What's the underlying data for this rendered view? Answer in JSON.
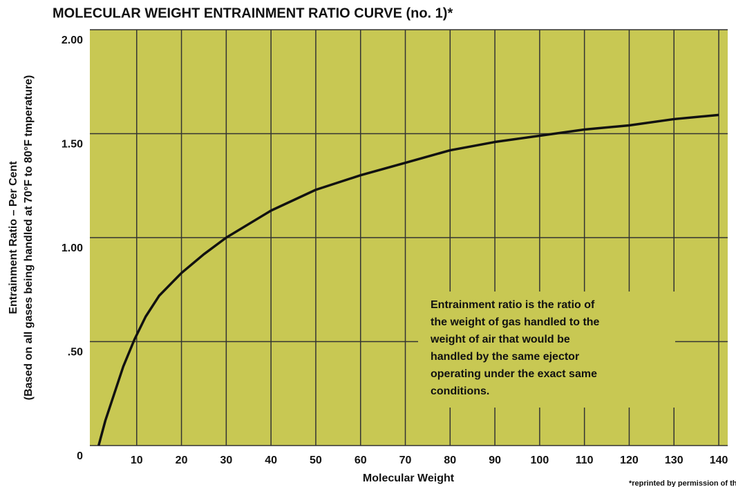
{
  "chart_data": {
    "type": "line",
    "title": "MOLECULAR WEIGHT ENTRAINMENT RATIO CURVE (no. 1)*",
    "xlabel": "Molecular Weight",
    "ylabel": [
      "Entrainment Ratio – Per Cent",
      "(Based on all gases being handled at 70°F to 80°F tmperature)"
    ],
    "x": [
      1.5,
      3,
      5,
      7,
      9.5,
      12,
      15,
      20,
      25,
      30,
      40,
      50,
      60,
      70,
      80,
      90,
      100,
      110,
      120,
      130,
      140
    ],
    "series": [
      {
        "name": "Entrainment ratio",
        "color": "#111111",
        "values": [
          0,
          0.12,
          0.25,
          0.38,
          0.51,
          0.62,
          0.72,
          0.83,
          0.92,
          1.0,
          1.13,
          1.23,
          1.3,
          1.36,
          1.42,
          1.46,
          1.49,
          1.52,
          1.54,
          1.57,
          1.59
        ]
      }
    ],
    "xlim": [
      0,
      142
    ],
    "xticks": [
      10,
      20,
      30,
      40,
      50,
      60,
      70,
      80,
      90,
      100,
      110,
      120,
      130,
      140
    ],
    "ylim": [
      0,
      2
    ],
    "yticks": [
      0,
      {
        "value": 0.5,
        "label": ".50"
      },
      {
        "value": 1,
        "label": "1.00"
      },
      {
        "value": 1.5,
        "label": "1.50"
      },
      {
        "value": 2,
        "label": "2.00"
      }
    ],
    "grid": true,
    "background": "#c8c853",
    "annotation": [
      "Entrainment ratio is the ratio of",
      "the weight of gas handled to the",
      "weight of air that would be",
      "handled by the same ejector",
      "operating under the exact same",
      "conditions."
    ],
    "footnote": "*reprinted by permission of the Heat Exchange Institu"
  }
}
